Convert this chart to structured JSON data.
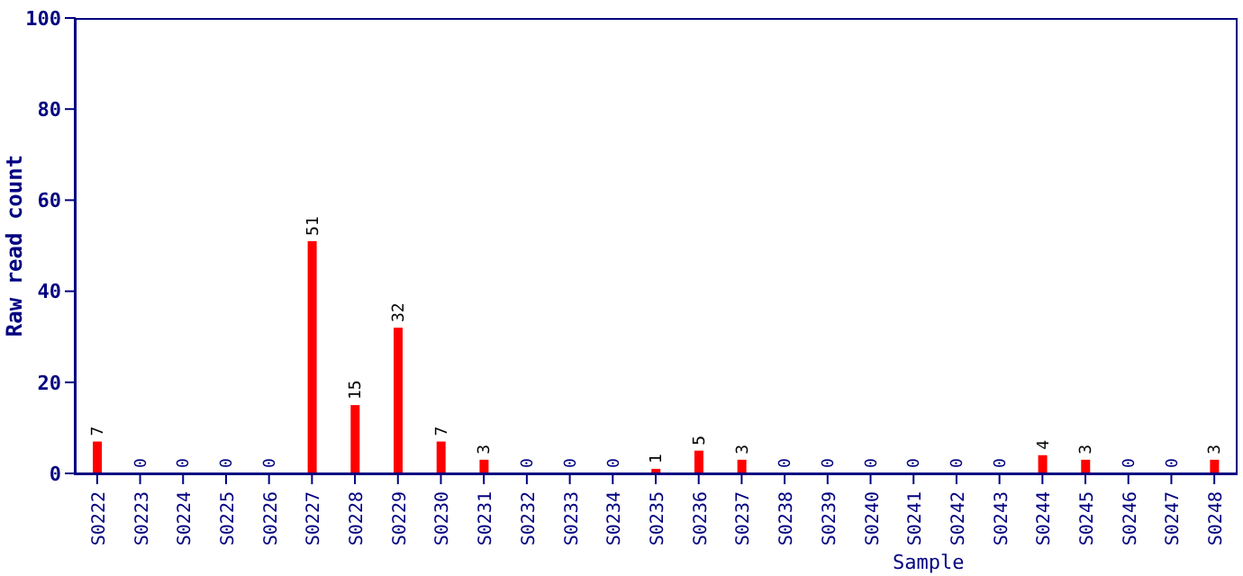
{
  "chart_data": {
    "type": "bar",
    "xlabel": "Sample",
    "ylabel": "Raw read count",
    "categories": [
      "S0222",
      "S0223",
      "S0224",
      "S0225",
      "S0226",
      "S0227",
      "S0228",
      "S0229",
      "S0230",
      "S0231",
      "S0232",
      "S0233",
      "S0234",
      "S0235",
      "S0236",
      "S0237",
      "S0238",
      "S0239",
      "S0240",
      "S0241",
      "S0242",
      "S0243",
      "S0244",
      "S0245",
      "S0246",
      "S0247",
      "S0248"
    ],
    "values": [
      7,
      0,
      0,
      0,
      0,
      51,
      15,
      32,
      7,
      3,
      0,
      0,
      0,
      1,
      5,
      3,
      0,
      0,
      0,
      0,
      0,
      0,
      4,
      3,
      0,
      0,
      3
    ],
    "color": "#ff0000",
    "ylim": [
      0,
      100
    ],
    "yticks": [
      0,
      20,
      40,
      60,
      80,
      100
    ],
    "data_labels": true,
    "grid": false
  }
}
